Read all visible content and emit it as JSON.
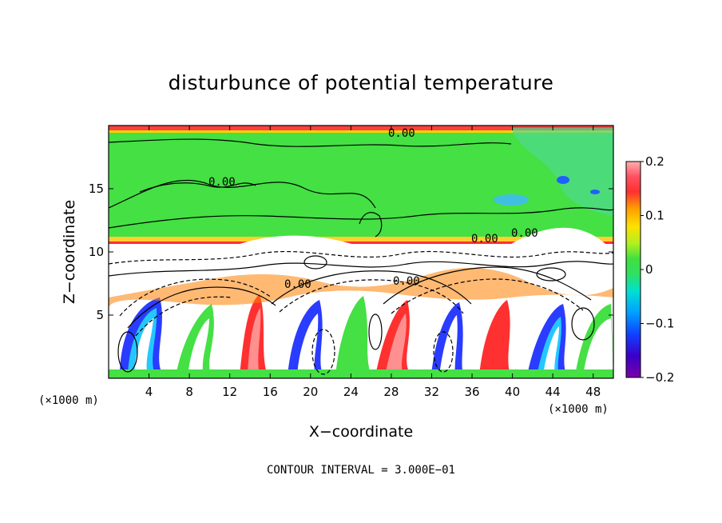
{
  "chart_data": {
    "type": "heatmap",
    "title": "disturbunce of potential temperature",
    "xlabel": "X−coordinate",
    "ylabel": "Z−coordinate",
    "x_unit": "(×1000 m)",
    "z_unit": "(×1000 m)",
    "xlim": [
      0,
      50
    ],
    "ylim": [
      0,
      20
    ],
    "x_ticks": [
      4,
      8,
      12,
      16,
      20,
      24,
      28,
      32,
      36,
      40,
      44,
      48
    ],
    "y_ticks": [
      5,
      10,
      15
    ],
    "colorbar": {
      "min": -0.2,
      "max": 0.2,
      "tick_values": [
        0.2,
        0.1,
        0,
        -0.1,
        -0.2
      ],
      "tick_labels": [
        "0.2",
        "0.1",
        "0",
        "−0.1",
        "−0.2"
      ]
    },
    "contour_labels": [
      "0.00",
      "0.00",
      "0.00",
      "0.00",
      "0.00",
      "0.00"
    ],
    "footer": "CONTOUR INTERVAL = 3.000E−01",
    "colors": {
      "neutral": "#3ce63c",
      "negative_strong": "#6a00a8",
      "positive_strong": "#ff3030",
      "contour": "#000000"
    }
  }
}
